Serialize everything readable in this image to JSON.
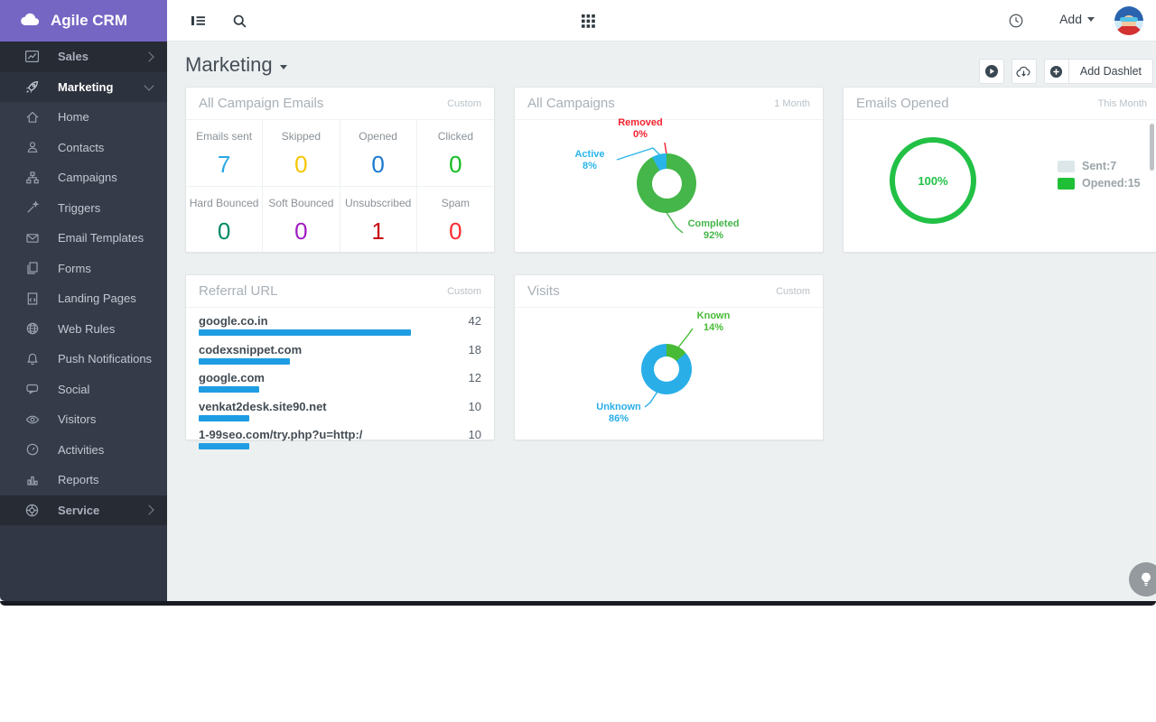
{
  "app": {
    "name": "Agile CRM"
  },
  "topbar": {
    "add_label": "Add"
  },
  "sidebar": {
    "top": [
      {
        "label": "Sales"
      },
      {
        "label": "Marketing"
      }
    ],
    "items": [
      {
        "label": "Home"
      },
      {
        "label": "Contacts"
      },
      {
        "label": "Campaigns"
      },
      {
        "label": "Triggers"
      },
      {
        "label": "Email Templates"
      },
      {
        "label": "Forms"
      },
      {
        "label": "Landing Pages"
      },
      {
        "label": "Web Rules"
      },
      {
        "label": "Push Notifications"
      },
      {
        "label": "Social"
      },
      {
        "label": "Visitors"
      },
      {
        "label": "Activities"
      },
      {
        "label": "Reports"
      }
    ],
    "bottom": [
      {
        "label": "Service"
      }
    ]
  },
  "page": {
    "title": "Marketing",
    "add_dashlet_label": "Add Dashlet"
  },
  "dashlets": {
    "campaign_emails": {
      "title": "All Campaign Emails",
      "badge": "Custom",
      "stats": [
        {
          "label": "Emails sent",
          "value": "7",
          "color": "#29a9e0"
        },
        {
          "label": "Skipped",
          "value": "0",
          "color": "#f6c600"
        },
        {
          "label": "Opened",
          "value": "0",
          "color": "#1878cf"
        },
        {
          "label": "Clicked",
          "value": "0",
          "color": "#12bd21"
        },
        {
          "label": "Hard Bounced",
          "value": "0",
          "color": "#008a67"
        },
        {
          "label": "Soft Bounced",
          "value": "0",
          "color": "#a11bc3"
        },
        {
          "label": "Unsubscribed",
          "value": "1",
          "color": "#c60d12"
        },
        {
          "label": "Spam",
          "value": "0",
          "color": "#fb2b31"
        }
      ]
    }
  },
  "chart_data": [
    {
      "id": "all_campaigns",
      "type": "donut",
      "title": "All Campaigns",
      "period": "1 Month",
      "slices": [
        {
          "label": "Completed",
          "pct": 92,
          "pct_label": "92%",
          "color": "#45b649"
        },
        {
          "label": "Active",
          "pct": 8,
          "pct_label": "8%",
          "color": "#29b5ea"
        },
        {
          "label": "Removed",
          "pct": 0,
          "pct_label": "0%",
          "color": "#f2222e"
        }
      ]
    },
    {
      "id": "emails_opened",
      "type": "donut",
      "title": "Emails Opened",
      "period": "This Month",
      "center_label": "100%",
      "ring_color": "#22c146",
      "legend": [
        {
          "label": "Sent:7",
          "color": "#dde6e9"
        },
        {
          "label": "Opened:15",
          "color": "#1fc035"
        }
      ]
    },
    {
      "id": "referral_url",
      "type": "bar",
      "title": "Referral URL",
      "period": "Custom",
      "bar_color": "#1f9de2",
      "max": 42,
      "items": [
        {
          "label": "google.co.in",
          "value": 42
        },
        {
          "label": "codexsnippet.com",
          "value": 18
        },
        {
          "label": "google.com",
          "value": 12
        },
        {
          "label": "venkat2desk.site90.net",
          "value": 10
        },
        {
          "label": "1-99seo.com/try.php?u=http:/",
          "value": 10
        }
      ]
    },
    {
      "id": "visits",
      "type": "donut",
      "title": "Visits",
      "period": "Custom",
      "slices": [
        {
          "label": "Known",
          "pct": 14,
          "pct_label": "14%",
          "color": "#47bb35"
        },
        {
          "label": "Unknown",
          "pct": 86,
          "pct_label": "86%",
          "color": "#29aee8"
        }
      ]
    }
  ]
}
